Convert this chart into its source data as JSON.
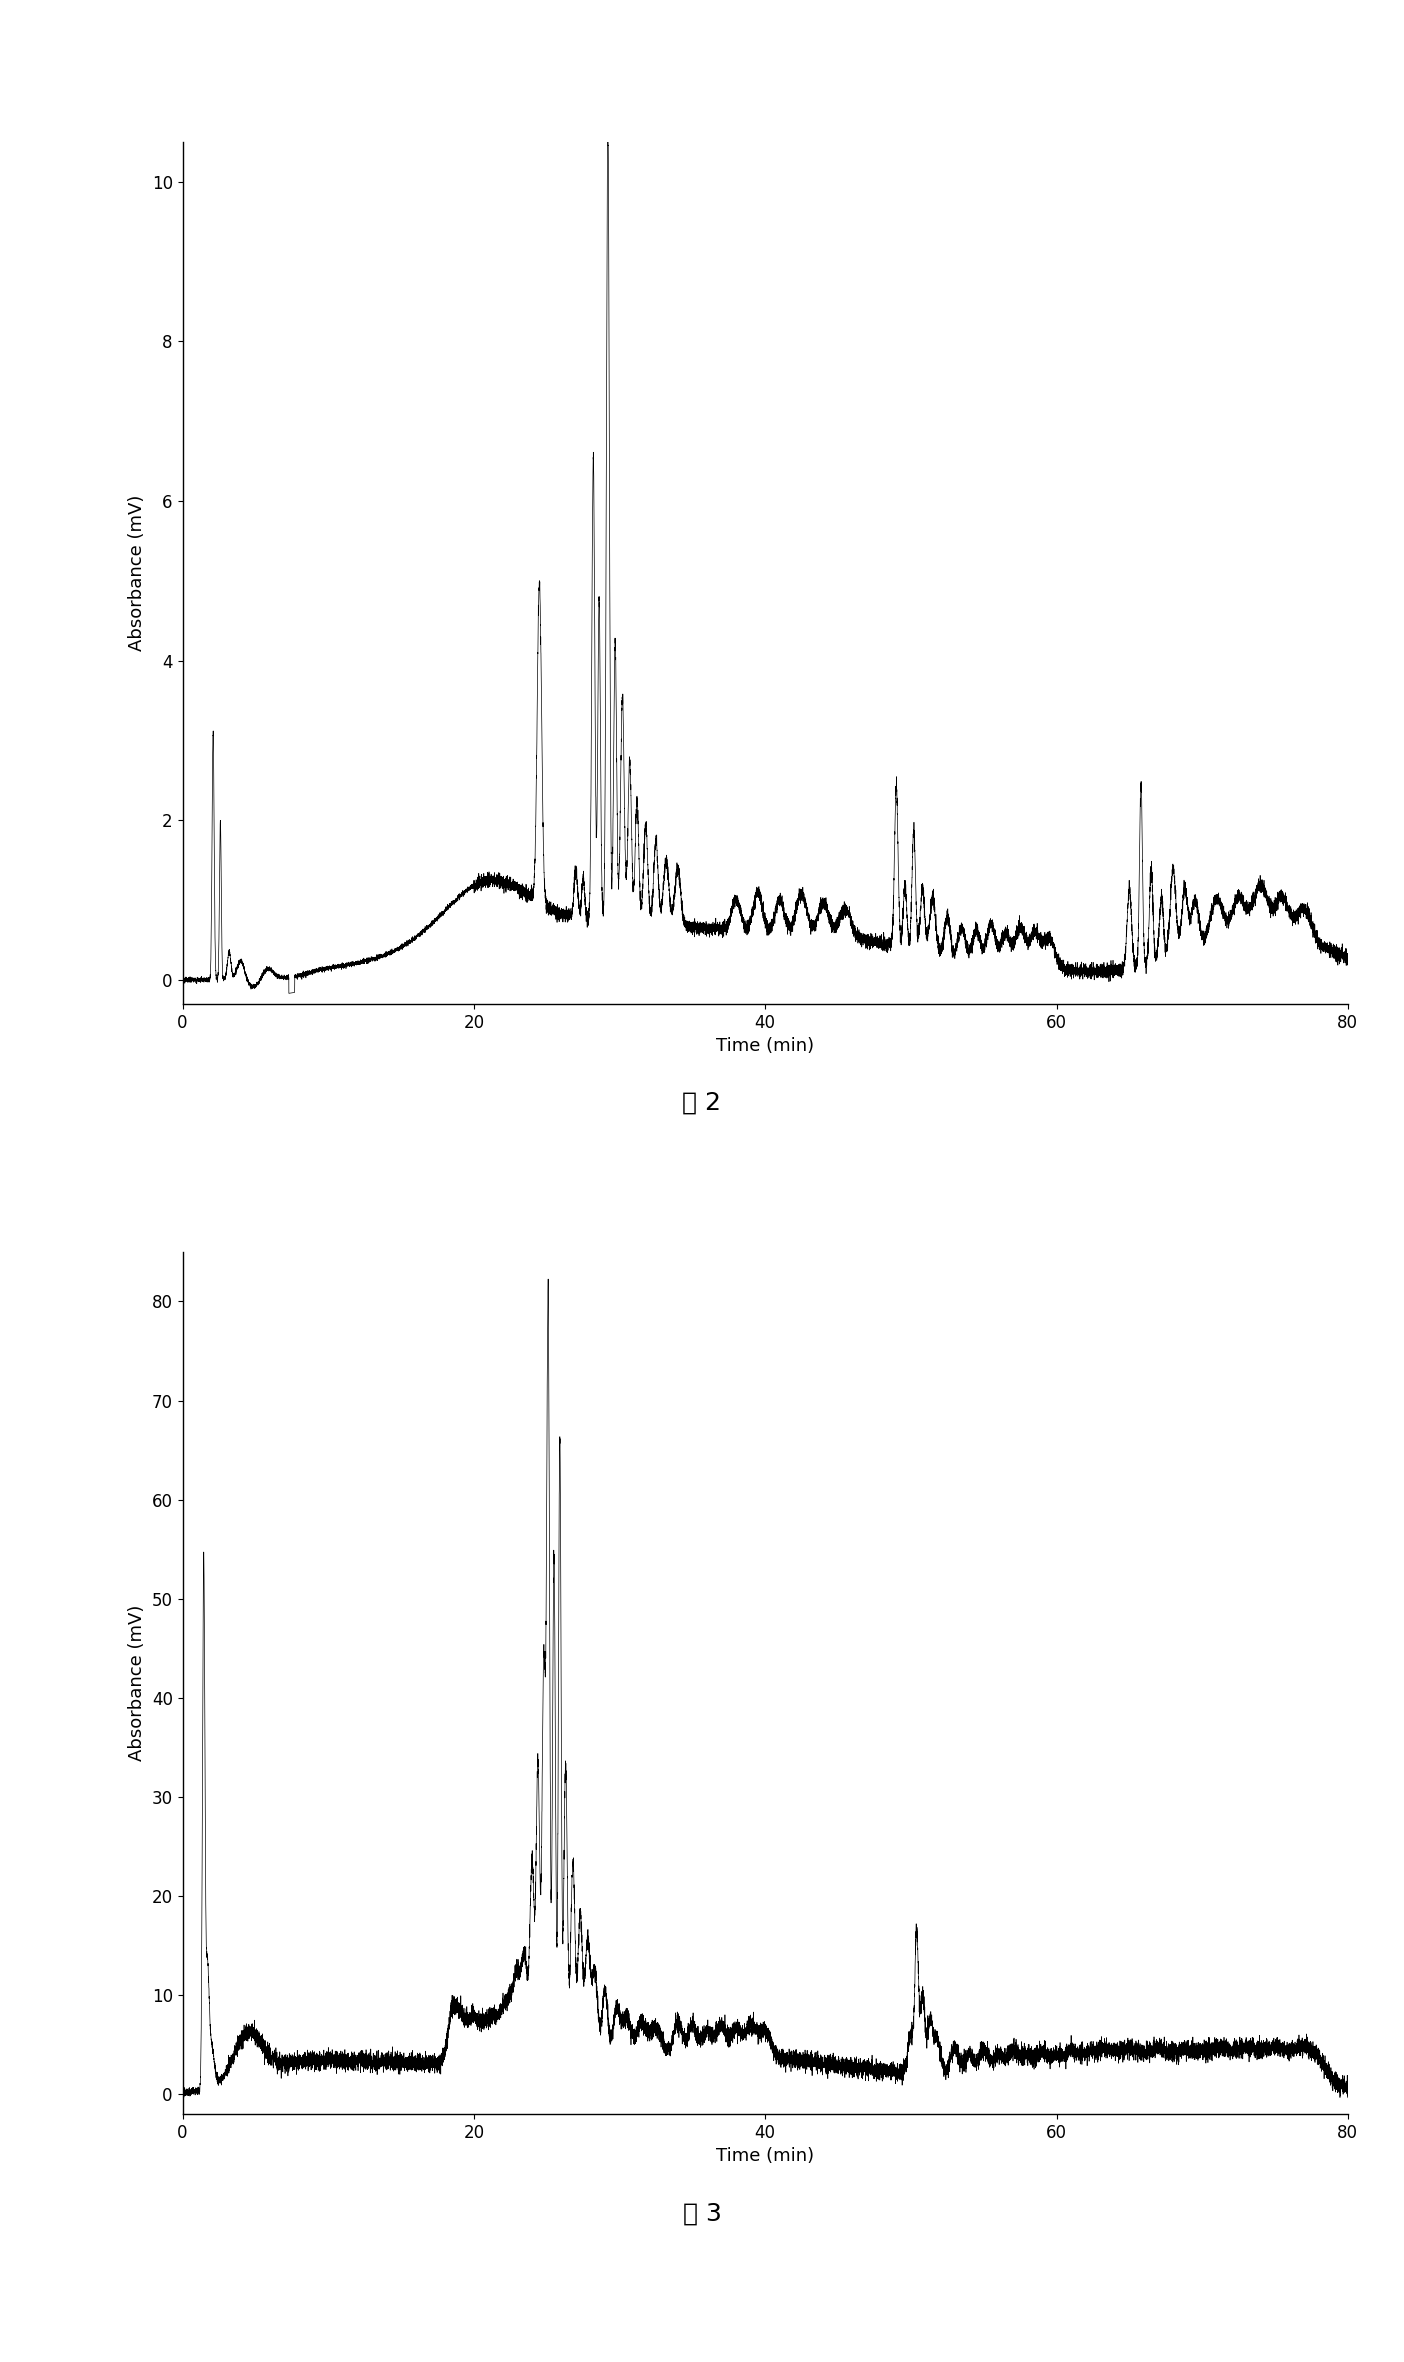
{
  "fig1": {
    "ylabel": "Absorbance (mV)",
    "xlabel": "Time (min)",
    "caption": "图 2",
    "xlim": [
      0,
      80
    ],
    "ylim": [
      -0.3,
      10.5
    ],
    "yticks": [
      0,
      2,
      4,
      6,
      8,
      10
    ],
    "xticks": [
      0,
      20,
      40,
      60,
      80
    ]
  },
  "fig2": {
    "ylabel": "Absorbance (mV)",
    "xlabel": "Time (min)",
    "caption": "图 3",
    "xlim": [
      0,
      80
    ],
    "ylim": [
      -2,
      85
    ],
    "yticks": [
      0,
      10,
      20,
      30,
      40,
      50,
      60,
      70,
      80
    ],
    "xticks": [
      0,
      20,
      40,
      60,
      80
    ]
  },
  "background_color": "#ffffff",
  "line_color": "#000000"
}
